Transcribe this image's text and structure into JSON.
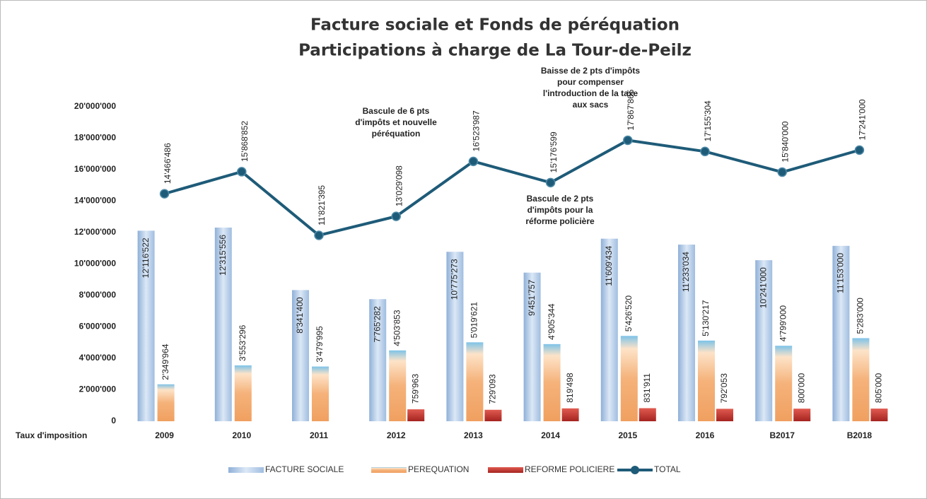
{
  "chart_data": {
    "type": "bar_line",
    "title": [
      "Facture sociale et Fonds de péréquation",
      "Participations à charge de La Tour-de-Peilz"
    ],
    "x_label": "Taux d'imposition",
    "categories": [
      "2009",
      "2010",
      "2011",
      "2012",
      "2013",
      "2014",
      "2015",
      "2016",
      "B2017",
      "B2018"
    ],
    "ylim": [
      0,
      20000000
    ],
    "yticks": [
      0,
      {
        "value": 2000000,
        "label": "2'000'000"
      },
      {
        "value": 4000000,
        "label": "4'000'000"
      },
      {
        "value": 6000000,
        "label": "6'000'000"
      },
      {
        "value": 8000000,
        "label": "8'000'000"
      },
      {
        "value": 10000000,
        "label": "10'000'000"
      },
      {
        "value": 12000000,
        "label": "12'000'000"
      },
      {
        "value": 14000000,
        "label": "14'000'000"
      },
      {
        "value": 16000000,
        "label": "16'000'000"
      },
      {
        "value": 18000000,
        "label": "18'000'000"
      },
      {
        "value": 20000000,
        "label": "20'000'000"
      }
    ],
    "series": [
      {
        "name": "FACTURE SOCIALE",
        "color": "#b9d0ea",
        "kind": "bar",
        "values": [
          12116522,
          12315556,
          8341400,
          7765282,
          10775273,
          9451757,
          11609434,
          11233034,
          10241000,
          11153000
        ],
        "value_labels": [
          "12'116'522",
          "12'315'556",
          "8'341'400",
          "7'765'282",
          "10'775'273",
          "9'451'757",
          "11'609'434",
          "11'233'034",
          "10'241'000",
          "11'153'000"
        ]
      },
      {
        "name": "PEREQUATION",
        "color": "#f3b37a",
        "kind": "bar",
        "values": [
          2349964,
          3553296,
          3479995,
          4503853,
          5019621,
          4905344,
          5426520,
          5130217,
          4799000,
          5283000
        ],
        "value_labels": [
          "2'349'964",
          "3'553'296",
          "3'479'995",
          "4'503'853",
          "5'019'621",
          "4'905'344",
          "5'426'520",
          "5'130'217",
          "4'799'000",
          "5'283'000"
        ]
      },
      {
        "name": "REFORME POLICIERE",
        "color": "#c0312c",
        "kind": "bar",
        "values": [
          null,
          null,
          null,
          759963,
          729093,
          819498,
          831911,
          792053,
          800000,
          805000
        ],
        "value_labels": [
          null,
          null,
          null,
          "759'963",
          "729'093",
          "819'498",
          "831'911",
          "792'053",
          "800'000",
          "805'000"
        ]
      },
      {
        "name": "TOTAL",
        "color": "#1e5b78",
        "kind": "line",
        "values": [
          14466486,
          15868852,
          11821395,
          13029098,
          16523987,
          15176599,
          17867865,
          17155304,
          15840000,
          17241000
        ],
        "value_labels": [
          "14'466'486",
          "15'868'852",
          "11'821'395",
          "13'029'098",
          "16'523'987",
          "15'176'599",
          "17'867'865",
          "17'155'304",
          "15'840'000",
          "17'241'000"
        ]
      }
    ],
    "annotations": [
      [
        "Bascule de 6 pts",
        "d'impôts et nouvelle",
        "péréquation"
      ],
      [
        "Baisse de 2 pts d'impôts",
        "pour compenser",
        "l'introduction de la taxe",
        "aux sacs"
      ],
      [
        "Bascule de 2 pts",
        "d'impôts pour la",
        "réforme policière"
      ]
    ]
  }
}
